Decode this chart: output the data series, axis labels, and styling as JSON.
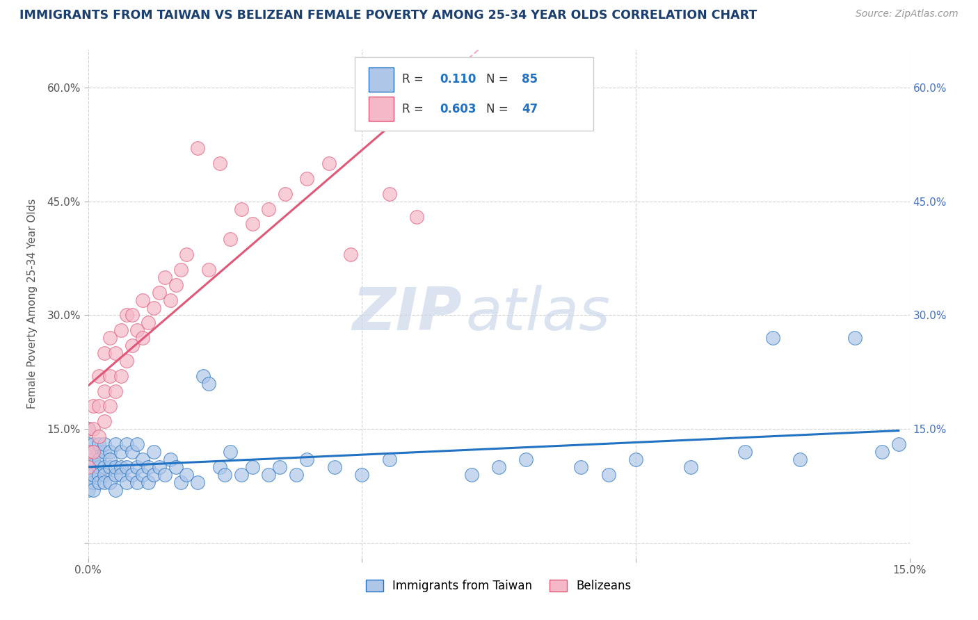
{
  "title": "IMMIGRANTS FROM TAIWAN VS BELIZEAN FEMALE POVERTY AMONG 25-34 YEAR OLDS CORRELATION CHART",
  "source_text": "Source: ZipAtlas.com",
  "ylabel": "Female Poverty Among 25-34 Year Olds",
  "xlim": [
    0.0,
    0.15
  ],
  "ylim": [
    -0.02,
    0.65
  ],
  "color_taiwan": "#aec6e8",
  "color_belize": "#f4b8c8",
  "line_color_taiwan": "#2272c3",
  "line_color_belize": "#e05878",
  "watermark_zip": "ZIP",
  "watermark_atlas": "atlas",
  "background_color": "#ffffff",
  "grid_color": "#cccccc",
  "taiwan_x": [
    0.0,
    0.0,
    0.0,
    0.0,
    0.0,
    0.0,
    0.0,
    0.0,
    0.001,
    0.001,
    0.001,
    0.001,
    0.001,
    0.001,
    0.001,
    0.002,
    0.002,
    0.002,
    0.002,
    0.002,
    0.002,
    0.003,
    0.003,
    0.003,
    0.003,
    0.003,
    0.004,
    0.004,
    0.004,
    0.004,
    0.005,
    0.005,
    0.005,
    0.005,
    0.006,
    0.006,
    0.006,
    0.007,
    0.007,
    0.007,
    0.008,
    0.008,
    0.009,
    0.009,
    0.009,
    0.01,
    0.01,
    0.011,
    0.011,
    0.012,
    0.012,
    0.013,
    0.014,
    0.015,
    0.016,
    0.017,
    0.018,
    0.02,
    0.021,
    0.022,
    0.024,
    0.025,
    0.026,
    0.028,
    0.03,
    0.033,
    0.035,
    0.038,
    0.04,
    0.045,
    0.05,
    0.055,
    0.07,
    0.075,
    0.08,
    0.09,
    0.095,
    0.1,
    0.11,
    0.12,
    0.125,
    0.13,
    0.14,
    0.145,
    0.148
  ],
  "taiwan_y": [
    0.1,
    0.12,
    0.08,
    0.13,
    0.09,
    0.11,
    0.07,
    0.15,
    0.1,
    0.12,
    0.08,
    0.13,
    0.09,
    0.07,
    0.11,
    0.1,
    0.12,
    0.09,
    0.13,
    0.08,
    0.11,
    0.1,
    0.12,
    0.09,
    0.08,
    0.13,
    0.1,
    0.12,
    0.08,
    0.11,
    0.09,
    0.13,
    0.1,
    0.07,
    0.1,
    0.12,
    0.09,
    0.08,
    0.13,
    0.1,
    0.09,
    0.12,
    0.1,
    0.08,
    0.13,
    0.09,
    0.11,
    0.1,
    0.08,
    0.12,
    0.09,
    0.1,
    0.09,
    0.11,
    0.1,
    0.08,
    0.09,
    0.08,
    0.22,
    0.21,
    0.1,
    0.09,
    0.12,
    0.09,
    0.1,
    0.09,
    0.1,
    0.09,
    0.11,
    0.1,
    0.09,
    0.11,
    0.09,
    0.1,
    0.11,
    0.1,
    0.09,
    0.11,
    0.1,
    0.12,
    0.27,
    0.11,
    0.27,
    0.12,
    0.13
  ],
  "belize_x": [
    0.0,
    0.0,
    0.0,
    0.001,
    0.001,
    0.001,
    0.002,
    0.002,
    0.002,
    0.003,
    0.003,
    0.003,
    0.004,
    0.004,
    0.004,
    0.005,
    0.005,
    0.006,
    0.006,
    0.007,
    0.007,
    0.008,
    0.008,
    0.009,
    0.01,
    0.01,
    0.011,
    0.012,
    0.013,
    0.014,
    0.015,
    0.016,
    0.017,
    0.018,
    0.02,
    0.022,
    0.024,
    0.026,
    0.028,
    0.03,
    0.033,
    0.036,
    0.04,
    0.044,
    0.048,
    0.055,
    0.06
  ],
  "belize_y": [
    0.1,
    0.12,
    0.15,
    0.12,
    0.15,
    0.18,
    0.14,
    0.18,
    0.22,
    0.16,
    0.2,
    0.25,
    0.18,
    0.22,
    0.27,
    0.2,
    0.25,
    0.22,
    0.28,
    0.24,
    0.3,
    0.26,
    0.3,
    0.28,
    0.27,
    0.32,
    0.29,
    0.31,
    0.33,
    0.35,
    0.32,
    0.34,
    0.36,
    0.38,
    0.52,
    0.36,
    0.5,
    0.4,
    0.44,
    0.42,
    0.44,
    0.46,
    0.48,
    0.5,
    0.38,
    0.46,
    0.43
  ],
  "belize_line_x0": 0.0,
  "belize_line_x1": 0.062,
  "taiwan_line_x0": 0.0,
  "taiwan_line_x1": 0.148
}
